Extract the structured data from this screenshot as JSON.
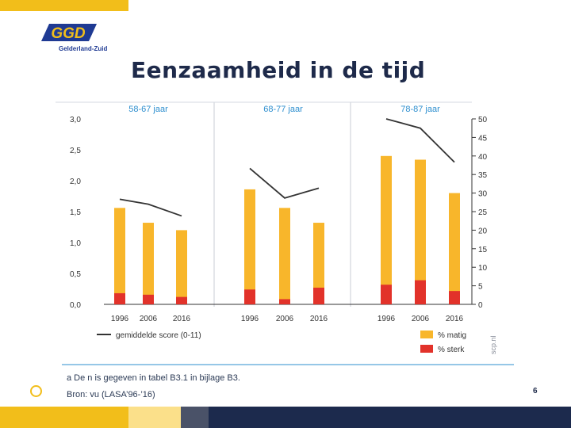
{
  "slide": {
    "title": "Eenzaamheid in de tijd",
    "page_number": "6",
    "colors": {
      "accent_yellow": "#f2be1a",
      "dark_blue": "#1e2a4a",
      "footer_light_yellow": "#fbe08a",
      "footer_gray": "#4a5268",
      "footer_navy": "#1c2a4d"
    }
  },
  "logo": {
    "text": "GGD",
    "subtitle": "Gelderland-Zuid"
  },
  "chart_data": {
    "type": "bar",
    "groups": [
      {
        "label": "58-67 jaar",
        "categories": [
          "1996",
          "2006",
          "2016"
        ]
      },
      {
        "label": "68-77 jaar",
        "categories": [
          "1996",
          "2006",
          "2016"
        ]
      },
      {
        "label": "78-87 jaar",
        "categories": [
          "1996",
          "2006",
          "2016"
        ]
      }
    ],
    "series": [
      {
        "name": "% matig",
        "axis": "right",
        "color": "#f8b62b",
        "values": [
          26,
          22,
          20,
          31,
          26,
          22,
          40,
          39,
          30
        ]
      },
      {
        "name": "% sterk",
        "axis": "right",
        "color": "#e2322a",
        "values": [
          3,
          2.6,
          2,
          4,
          1.4,
          4.5,
          5.3,
          6.5,
          3.6
        ]
      },
      {
        "name": "gemiddelde score (0-11)",
        "axis": "left",
        "type": "line",
        "color": "#333333",
        "values": [
          1.7,
          1.62,
          1.43,
          2.2,
          1.72,
          1.88,
          3.0,
          2.85,
          2.3
        ]
      }
    ],
    "left_axis": {
      "min": 0,
      "max": 3,
      "ticks": [
        "0,0",
        "0,5",
        "1,0",
        "1,5",
        "2,0",
        "2,5",
        "3,0"
      ]
    },
    "right_axis": {
      "min": 0,
      "max": 50,
      "ticks": [
        "0",
        "5",
        "10",
        "15",
        "20",
        "25",
        "30",
        "35",
        "40",
        "45",
        "50"
      ]
    },
    "legend": {
      "line_label": "gemiddelde score (0-11)",
      "moderate_label": "% matig",
      "severe_label": "% sterk"
    },
    "watermark": "scp.nl",
    "note": "a De n is gegeven in tabel B3.1 in bijlage B3.",
    "source": "Bron: vu (LASA’96-’16)"
  }
}
